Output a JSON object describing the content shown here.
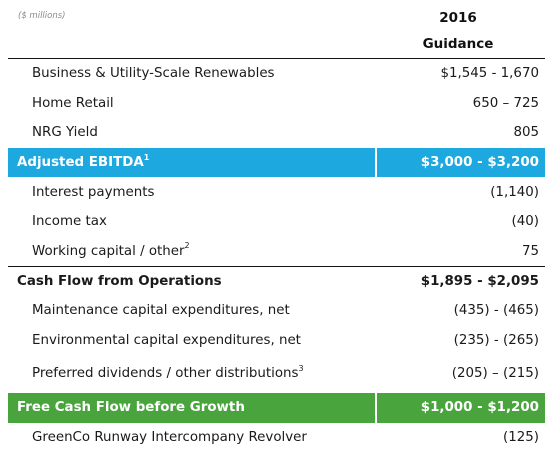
{
  "header": {
    "units": "($ millions)",
    "year": "2016",
    "column_label": "Guidance"
  },
  "rows": [
    {
      "label": "Business & Utility-Scale Renewables",
      "value": "$1,545 - 1,670"
    },
    {
      "label": "Home Retail",
      "value": "650 – 725"
    },
    {
      "label": "NRG Yield",
      "value": "805"
    },
    {
      "label": "Adjusted EBITDA",
      "sup": "1",
      "value": "$3,000 - $3,200"
    },
    {
      "label": "Interest payments",
      "value": "(1,140)"
    },
    {
      "label": "Income tax",
      "value": "(40)"
    },
    {
      "label": "Working capital / other",
      "sup": "2",
      "value": "75"
    },
    {
      "label": "Cash Flow from Operations",
      "value": "$1,895 - $2,095"
    },
    {
      "label": "Maintenance capital expenditures, net",
      "value": "(435) - (465)"
    },
    {
      "label": "Environmental capital expenditures, net",
      "value": "(235) - (265)"
    },
    {
      "label": "Preferred dividends / other distributions",
      "sup": "3",
      "value": "(205) – (215)"
    },
    {
      "label": "Free Cash Flow before Growth",
      "value": "$1,000 - $1,200"
    },
    {
      "label": "GreenCo Runway Intercompany Revolver",
      "value": "(125)"
    }
  ],
  "colors": {
    "ebitda_band": "#1ea8e0",
    "fcf_band": "#4aa43e"
  }
}
